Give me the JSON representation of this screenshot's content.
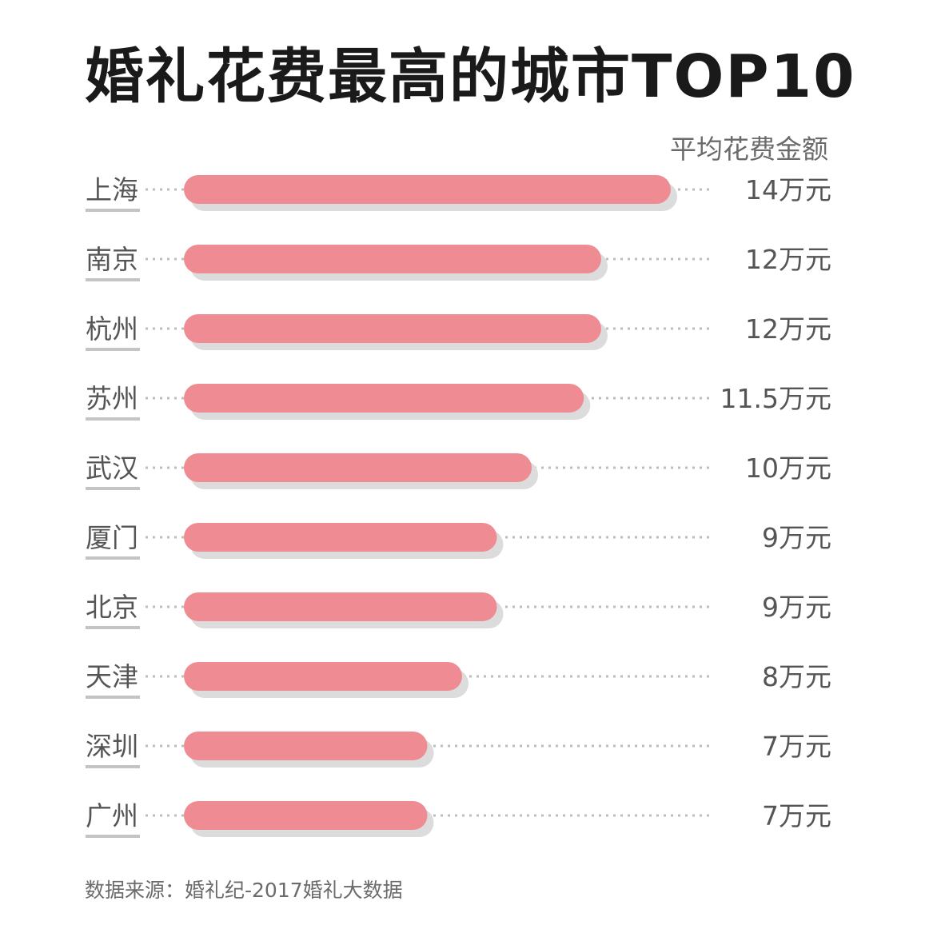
{
  "chart_data": {
    "type": "bar",
    "orientation": "horizontal",
    "title": "婚礼花费最高的城市TOP10",
    "value_header": "平均花费金额",
    "categories": [
      "上海",
      "南京",
      "杭州",
      "苏州",
      "武汉",
      "厦门",
      "北京",
      "天津",
      "深圳",
      "广州"
    ],
    "values": [
      14,
      12,
      12,
      11.5,
      10,
      9,
      9,
      8,
      7,
      7
    ],
    "value_labels": [
      "14万元",
      "12万元",
      "12万元",
      "11.5万元",
      "10万元",
      "9万元",
      "9万元",
      "8万元",
      "7万元",
      "7万元"
    ],
    "unit": "万元",
    "xlim": [
      0,
      14
    ],
    "grid": false,
    "legend": "none",
    "colors": {
      "bar": "#ef8b92",
      "bar_shadow": "#dcdcdc",
      "dots": "#bdbdbd",
      "category_text": "#555555",
      "category_underline": "#c4c4c4",
      "value_text": "#555555"
    },
    "source": "数据来源：婚礼纪-2017婚礼大数据"
  }
}
